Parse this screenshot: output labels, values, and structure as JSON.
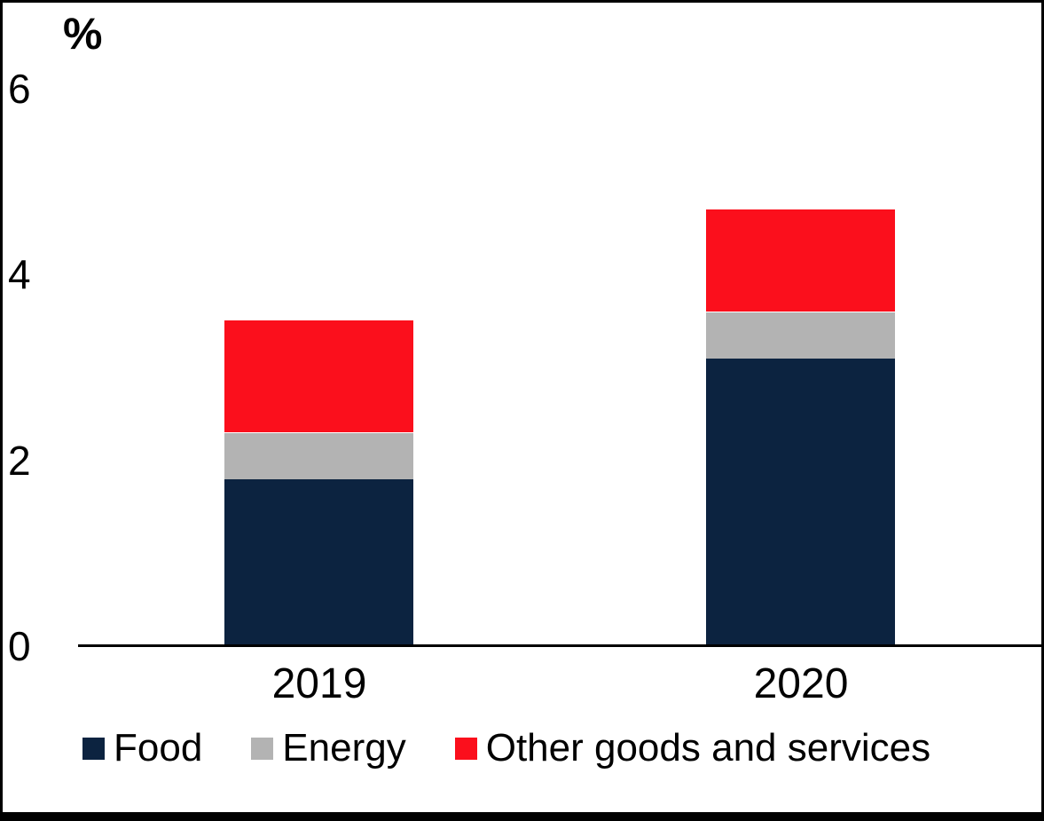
{
  "chart_data": {
    "type": "bar",
    "stacked": true,
    "title": "",
    "xlabel": "",
    "ylabel": "%",
    "categories": [
      "2019",
      "2020"
    ],
    "series": [
      {
        "name": "Food",
        "color": "#0c2340",
        "values": [
          1.8,
          3.1
        ]
      },
      {
        "name": "Energy",
        "color": "#b3b3b3",
        "values": [
          0.5,
          0.5
        ]
      },
      {
        "name": "Other goods and services",
        "color": "#fb0f1c",
        "values": [
          1.2,
          1.1
        ]
      }
    ],
    "totals": [
      3.5,
      4.7
    ],
    "ylim": [
      0,
      6
    ],
    "yticks": [
      0,
      2,
      4,
      6
    ],
    "ytick_labels": [
      "0",
      "2",
      "4",
      "6"
    ],
    "bar_width_frac": 0.196,
    "legend_position": "bottom",
    "grid": false
  }
}
